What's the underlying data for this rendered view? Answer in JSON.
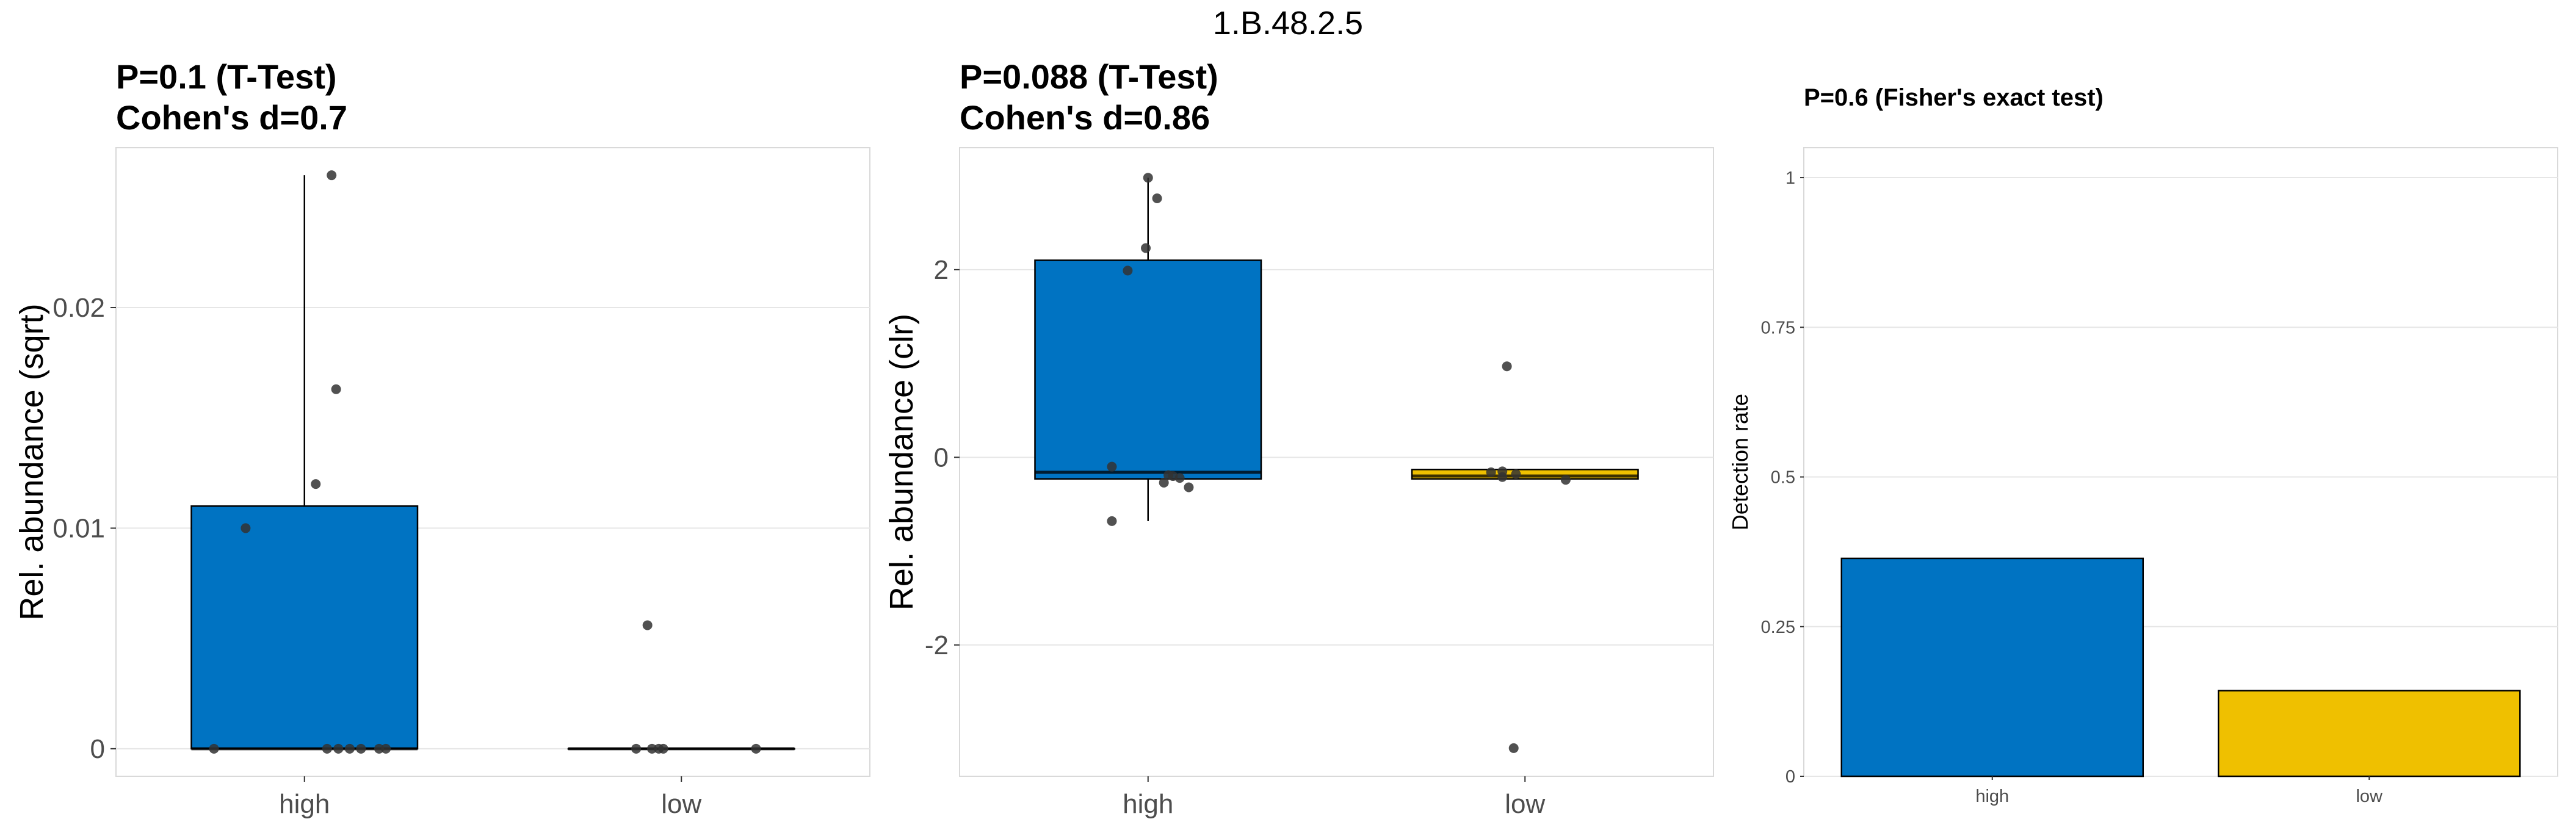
{
  "figure_title": "1.B.48.2.5",
  "colors": {
    "high": "#0073C2",
    "low": "#EFC000",
    "point": "#333333"
  },
  "chart_data": [
    {
      "type": "box",
      "title_line1": "P=0.1 (T-Test)",
      "title_line2": "Cohen's d=0.7",
      "xlabel": "",
      "ylabel": "Rel. abundance (sqrt)",
      "ylim": [
        -0.00125,
        0.02725
      ],
      "yticks": [
        0,
        0.01,
        0.02
      ],
      "ytick_labels": [
        "0",
        "0.01",
        "0.02"
      ],
      "categories": [
        "high",
        "low"
      ],
      "boxes": [
        {
          "group": "high",
          "min": 0,
          "q1": 0,
          "median": 0,
          "q3": 0.011,
          "max": 0.026
        },
        {
          "group": "low",
          "min": 0,
          "q1": 0,
          "median": 0,
          "q3": 0,
          "max": 0
        }
      ],
      "points": [
        {
          "group": "high",
          "offset": 0.12,
          "y": 0.026
        },
        {
          "group": "high",
          "offset": 0.14,
          "y": 0.0163
        },
        {
          "group": "high",
          "offset": 0.05,
          "y": 0.012
        },
        {
          "group": "high",
          "offset": -0.26,
          "y": 0.01
        },
        {
          "group": "high",
          "offset": -0.4,
          "y": 0
        },
        {
          "group": "high",
          "offset": 0.1,
          "y": 0
        },
        {
          "group": "high",
          "offset": 0.15,
          "y": 0
        },
        {
          "group": "high",
          "offset": 0.2,
          "y": 0
        },
        {
          "group": "high",
          "offset": 0.25,
          "y": 0
        },
        {
          "group": "high",
          "offset": 0.33,
          "y": 0
        },
        {
          "group": "high",
          "offset": 0.36,
          "y": 0
        },
        {
          "group": "low",
          "offset": -0.15,
          "y": 0.0056
        },
        {
          "group": "low",
          "offset": -0.2,
          "y": 0
        },
        {
          "group": "low",
          "offset": -0.13,
          "y": 0
        },
        {
          "group": "low",
          "offset": -0.1,
          "y": 0
        },
        {
          "group": "low",
          "offset": -0.08,
          "y": 0
        },
        {
          "group": "low",
          "offset": 0.33,
          "y": 0
        }
      ]
    },
    {
      "type": "box",
      "title_line1": "P=0.088 (T-Test)",
      "title_line2": "Cohen's d=0.86",
      "xlabel": "",
      "ylabel": "Rel. abundance (clr)",
      "ylim": [
        -3.4,
        3.3
      ],
      "yticks": [
        -2,
        0,
        2
      ],
      "ytick_labels": [
        "-2",
        "0",
        "2"
      ],
      "categories": [
        "high",
        "low"
      ],
      "boxes": [
        {
          "group": "high",
          "min": -0.68,
          "q1": -0.23,
          "median": -0.16,
          "q3": 2.1,
          "max": 2.98
        },
        {
          "group": "low",
          "min": -0.23,
          "q1": -0.23,
          "median": -0.2,
          "q3": -0.13,
          "max": -0.13
        }
      ],
      "points": [
        {
          "group": "high",
          "offset": 0.0,
          "y": 2.98
        },
        {
          "group": "high",
          "offset": 0.04,
          "y": 2.76
        },
        {
          "group": "high",
          "offset": -0.01,
          "y": 2.23
        },
        {
          "group": "high",
          "offset": -0.09,
          "y": 1.99
        },
        {
          "group": "high",
          "offset": -0.16,
          "y": -0.1
        },
        {
          "group": "high",
          "offset": 0.09,
          "y": -0.19
        },
        {
          "group": "high",
          "offset": 0.11,
          "y": -0.2
        },
        {
          "group": "high",
          "offset": 0.14,
          "y": -0.22
        },
        {
          "group": "high",
          "offset": 0.07,
          "y": -0.27
        },
        {
          "group": "high",
          "offset": 0.18,
          "y": -0.32
        },
        {
          "group": "high",
          "offset": -0.16,
          "y": -0.68
        },
        {
          "group": "low",
          "offset": -0.15,
          "y": -0.16
        },
        {
          "group": "low",
          "offset": -0.1,
          "y": -0.15
        },
        {
          "group": "low",
          "offset": -0.1,
          "y": -0.21
        },
        {
          "group": "low",
          "offset": -0.04,
          "y": -0.18
        },
        {
          "group": "low",
          "offset": 0.18,
          "y": -0.24
        },
        {
          "group": "low",
          "offset": -0.08,
          "y": 0.97
        },
        {
          "group": "low",
          "offset": -0.05,
          "y": -3.1
        }
      ]
    },
    {
      "type": "bar",
      "title": "P=0.6 (Fisher's exact test)",
      "xlabel": "",
      "ylabel": "Detection rate",
      "ylim": [
        0,
        1.05
      ],
      "yticks": [
        0,
        0.25,
        0.5,
        0.75,
        1
      ],
      "ytick_labels": [
        "0",
        "0.25",
        "0.5",
        "0.75",
        "1"
      ],
      "categories": [
        "high",
        "low"
      ],
      "values": [
        0.364,
        0.143
      ]
    }
  ]
}
